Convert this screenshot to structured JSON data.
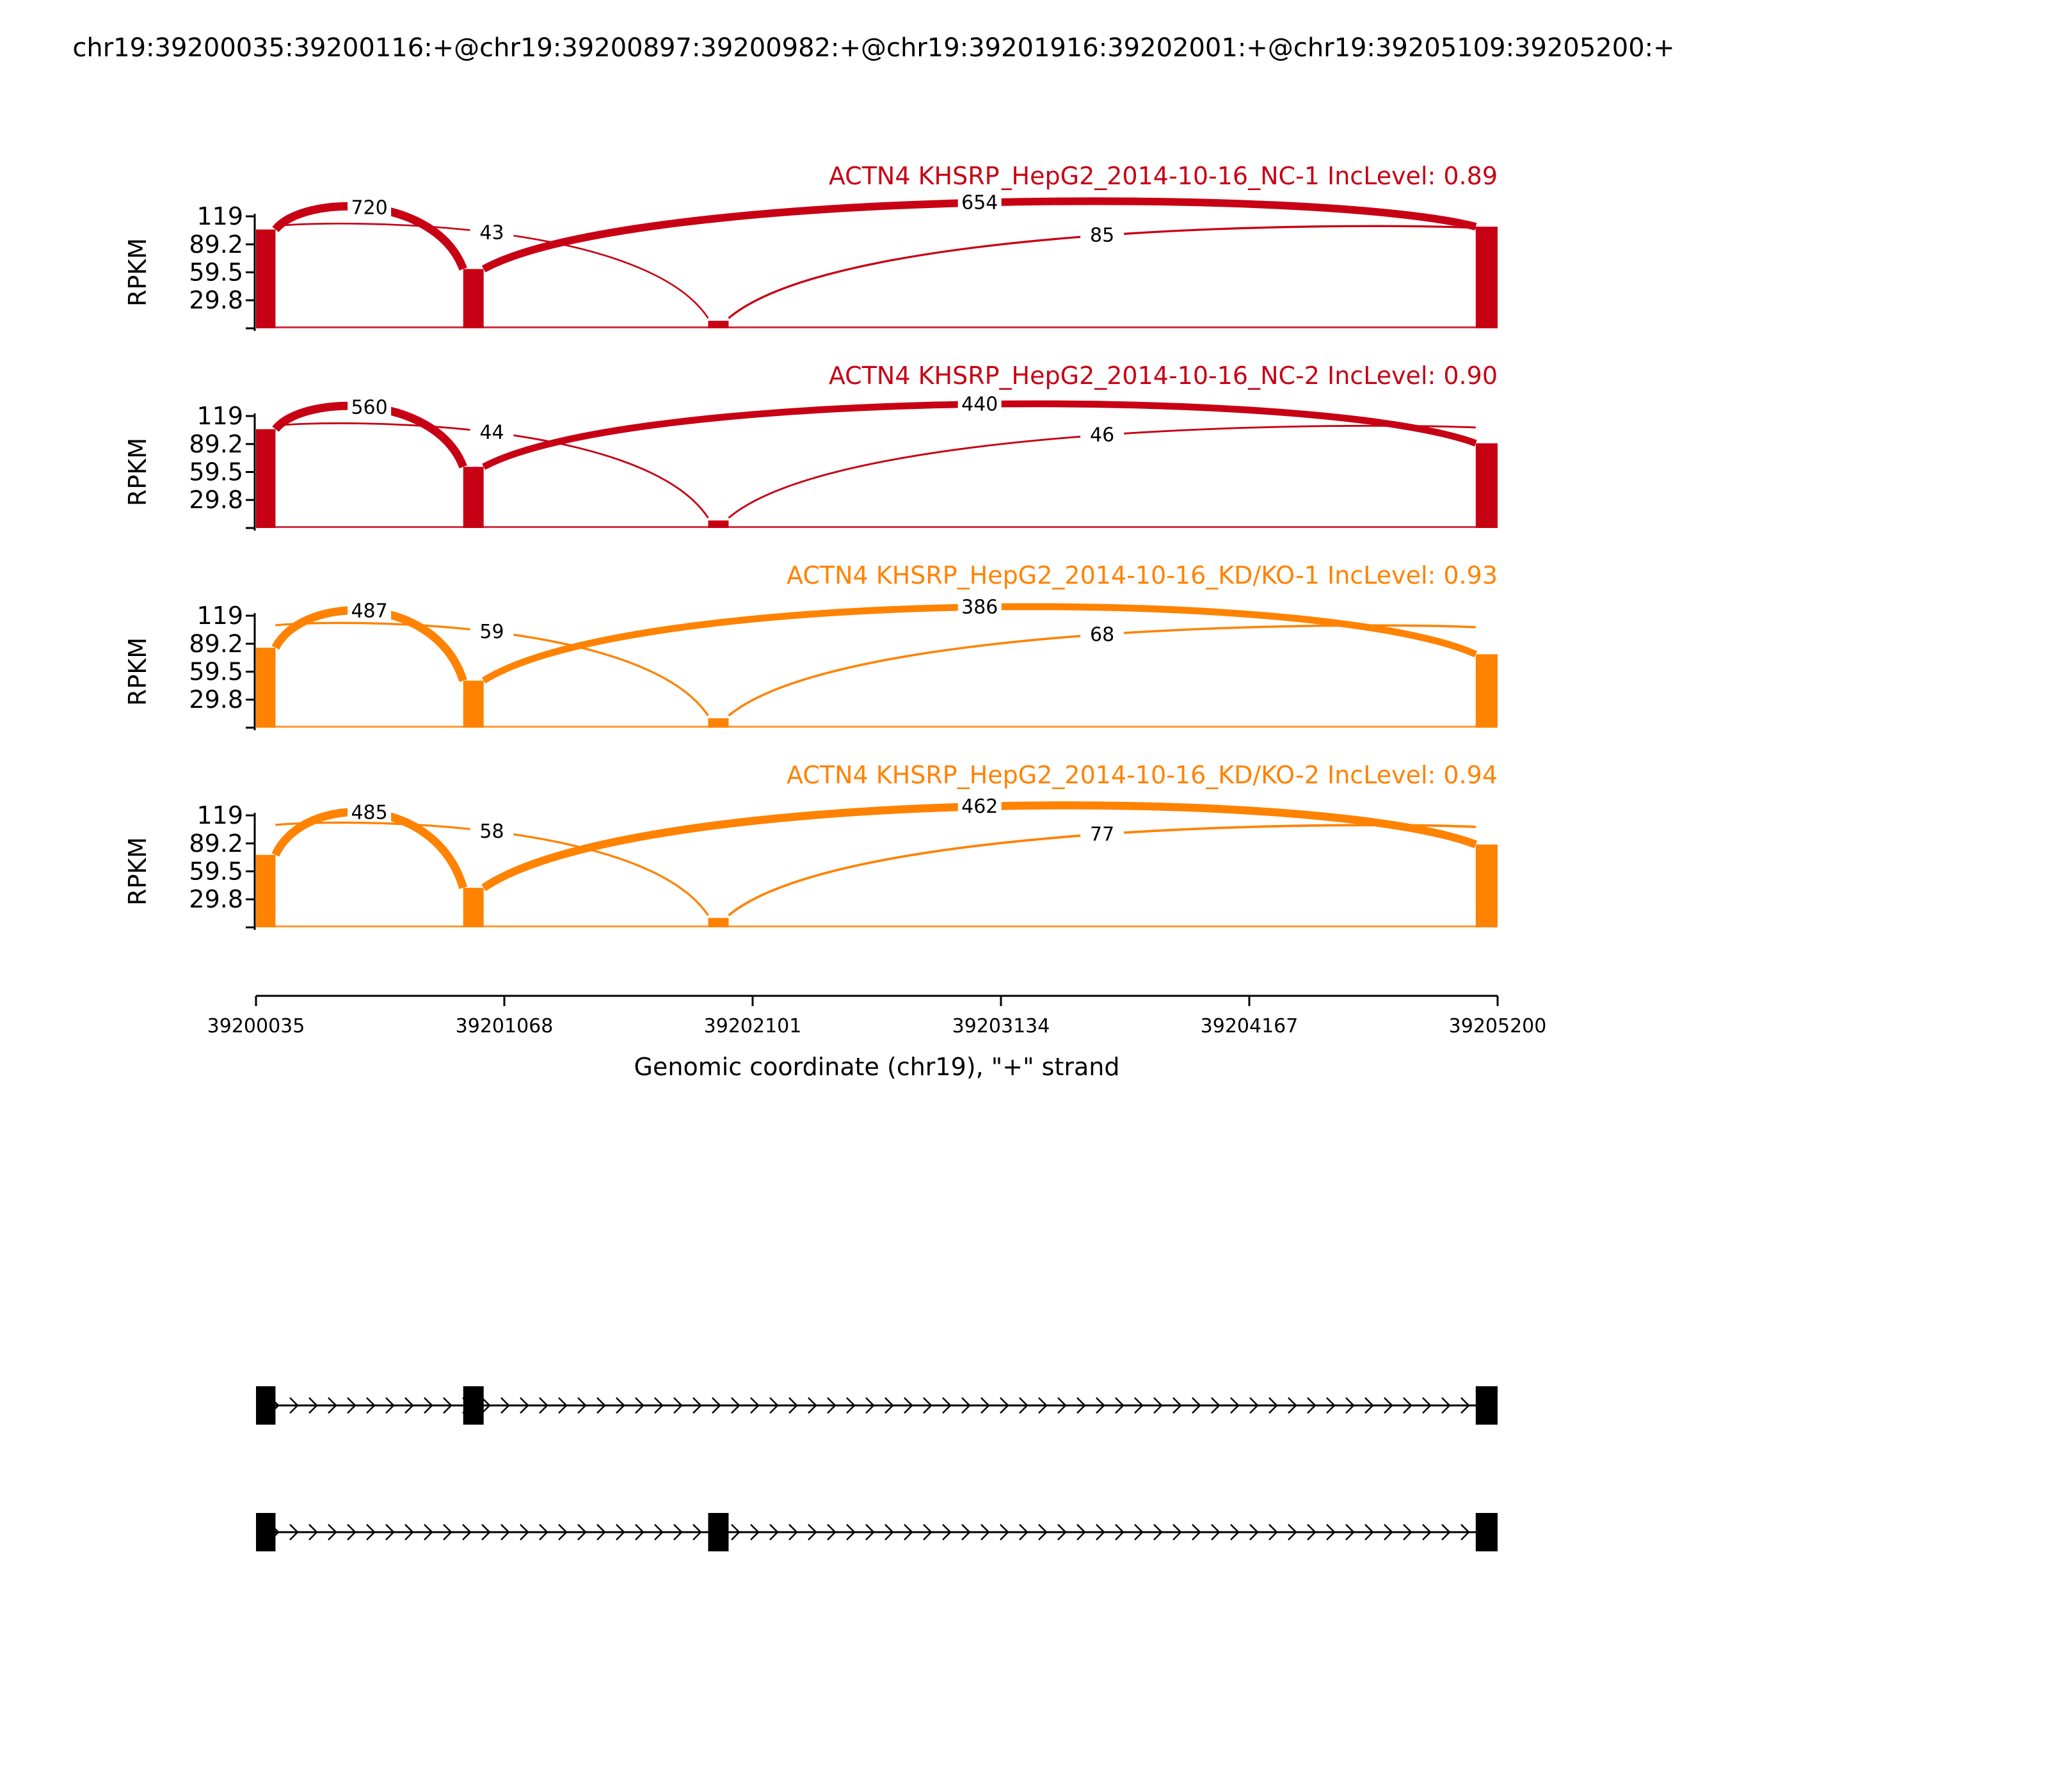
{
  "title": "chr19:39200035:39200116:+@chr19:39200897:39200982:+@chr19:39201916:39202001:+@chr19:39205109:39205200:+",
  "chart_data": {
    "type": "sashimi",
    "ylabel": "RPKM",
    "yticks": [
      "119",
      "89.2",
      "59.5",
      "29.8"
    ],
    "ymax": 119,
    "xlabel": "Genomic coordinate (chr19), \"+\" strand",
    "xlim": [
      39200035,
      39205200
    ],
    "xticks": [
      "39200035",
      "39201068",
      "39202101",
      "39203134",
      "39204167",
      "39205200"
    ],
    "exons": [
      {
        "start": 39200035,
        "end": 39200116
      },
      {
        "start": 39200897,
        "end": 39200982
      },
      {
        "start": 39201916,
        "end": 39202001
      },
      {
        "start": 39205109,
        "end": 39205200
      }
    ],
    "tracks": [
      {
        "label": "ACTN4 KHSRP_HepG2_2014-10-16_NC-1 IncLevel: 0.89",
        "color": "#c70014",
        "coverage": [
          105,
          63,
          8,
          108
        ],
        "junctions": [
          {
            "from": 39200116,
            "to": 39200897,
            "count": "720",
            "side": "above"
          },
          {
            "from": 39200116,
            "to": 39201916,
            "count": "43",
            "side": "below"
          },
          {
            "from": 39200982,
            "to": 39205109,
            "count": "654",
            "side": "above"
          },
          {
            "from": 39202001,
            "to": 39205109,
            "count": "85",
            "side": "below"
          }
        ]
      },
      {
        "label": "ACTN4 KHSRP_HepG2_2014-10-16_NC-2 IncLevel: 0.90",
        "color": "#c70014",
        "coverage": [
          105,
          65,
          8,
          90
        ],
        "junctions": [
          {
            "from": 39200116,
            "to": 39200897,
            "count": "560",
            "side": "above"
          },
          {
            "from": 39200116,
            "to": 39201916,
            "count": "44",
            "side": "below"
          },
          {
            "from": 39200982,
            "to": 39205109,
            "count": "440",
            "side": "above"
          },
          {
            "from": 39202001,
            "to": 39205109,
            "count": "46",
            "side": "below"
          }
        ]
      },
      {
        "label": "ACTN4 KHSRP_HepG2_2014-10-16_KD/KO-1 IncLevel: 0.93",
        "color": "#ff8200",
        "coverage": [
          85,
          50,
          10,
          78
        ],
        "junctions": [
          {
            "from": 39200116,
            "to": 39200897,
            "count": "487",
            "side": "above"
          },
          {
            "from": 39200116,
            "to": 39201916,
            "count": "59",
            "side": "below"
          },
          {
            "from": 39200982,
            "to": 39205109,
            "count": "386",
            "side": "above"
          },
          {
            "from": 39202001,
            "to": 39205109,
            "count": "68",
            "side": "below"
          }
        ]
      },
      {
        "label": "ACTN4 KHSRP_HepG2_2014-10-16_KD/KO-2 IncLevel: 0.94",
        "color": "#ff8200",
        "coverage": [
          77,
          42,
          10,
          88
        ],
        "junctions": [
          {
            "from": 39200116,
            "to": 39200897,
            "count": "485",
            "side": "above"
          },
          {
            "from": 39200116,
            "to": 39201916,
            "count": "58",
            "side": "below"
          },
          {
            "from": 39200982,
            "to": 39205109,
            "count": "462",
            "side": "above"
          },
          {
            "from": 39202001,
            "to": 39205109,
            "count": "77",
            "side": "below"
          }
        ]
      }
    ],
    "isoforms": [
      {
        "exons": [
          0,
          1,
          3
        ]
      },
      {
        "exons": [
          0,
          2,
          3
        ]
      }
    ]
  }
}
